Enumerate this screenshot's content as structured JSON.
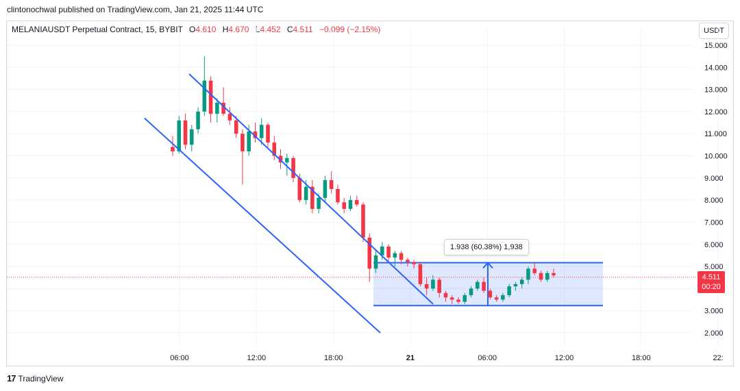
{
  "header": {
    "publish_line": "clintonochwal published on TradingView.com, Jan 21, 2025 11:44 UTC"
  },
  "legend": {
    "symbol": "MELANIAUSDT Perpetual Contract, 15, BYBIT",
    "open_k": "O",
    "open_v": "4.610",
    "high_k": "H",
    "high_v": "4.670",
    "low_k": "L",
    "low_v": "4.452",
    "close_k": "C",
    "close_v": "4.511",
    "change": "−0.099 (−2.15%)"
  },
  "currency_button": "USDT",
  "price_tag": {
    "price": "4.511",
    "countdown": "00:20"
  },
  "measure": {
    "label": "1.938 (60.38%) 1,938"
  },
  "footer": {
    "brand": "TradingView",
    "logo": "17"
  },
  "colors": {
    "up": "#089981",
    "down": "#f23645",
    "channel": "#2962ff",
    "grid": "#f0f3fa"
  },
  "chart_data": {
    "type": "candlestick",
    "x_tick_labels": [
      "06:00",
      "12:00",
      "18:00",
      "21",
      "06:00",
      "12:00",
      "18:00",
      "22:"
    ],
    "y_tick_labels": [
      "2.000",
      "3.000",
      "4.000",
      "5.000",
      "6.000",
      "7.000",
      "8.000",
      "9.000",
      "10.000",
      "11.000",
      "12.000",
      "13.000",
      "14.000",
      "15.000"
    ],
    "ylim": [
      1.5,
      15.7
    ],
    "last_price": 4.511,
    "candles": [
      [
        10.4,
        10.9,
        10.0,
        10.2
      ],
      [
        10.2,
        11.8,
        10.1,
        11.6
      ],
      [
        11.6,
        11.9,
        10.3,
        10.5
      ],
      [
        10.5,
        11.4,
        10.2,
        11.2
      ],
      [
        11.2,
        12.2,
        11.0,
        12.0
      ],
      [
        12.0,
        14.5,
        11.8,
        13.4
      ],
      [
        13.4,
        13.6,
        11.5,
        11.9
      ],
      [
        11.9,
        12.6,
        11.5,
        12.4
      ],
      [
        12.4,
        13.1,
        11.8,
        11.9
      ],
      [
        11.9,
        12.2,
        11.4,
        11.6
      ],
      [
        11.6,
        11.8,
        10.8,
        11.0
      ],
      [
        11.0,
        11.2,
        8.7,
        10.2
      ],
      [
        10.2,
        11.4,
        10.0,
        11.1
      ],
      [
        11.1,
        11.5,
        10.6,
        10.8
      ],
      [
        10.8,
        11.7,
        10.5,
        11.4
      ],
      [
        11.4,
        11.5,
        10.4,
        10.6
      ],
      [
        10.6,
        10.9,
        9.8,
        10.0
      ],
      [
        10.0,
        10.3,
        9.4,
        9.7
      ],
      [
        9.7,
        10.1,
        9.1,
        9.9
      ],
      [
        9.9,
        10.0,
        8.8,
        9.0
      ],
      [
        9.0,
        9.2,
        7.9,
        8.0
      ],
      [
        8.0,
        8.9,
        7.8,
        8.6
      ],
      [
        8.6,
        8.9,
        7.4,
        7.6
      ],
      [
        7.6,
        8.3,
        7.4,
        8.1
      ],
      [
        8.1,
        9.1,
        7.9,
        8.9
      ],
      [
        8.9,
        9.3,
        8.3,
        8.5
      ],
      [
        8.5,
        8.7,
        7.8,
        7.9
      ],
      [
        7.9,
        8.1,
        7.4,
        7.6
      ],
      [
        7.6,
        8.2,
        7.5,
        8.0
      ],
      [
        8.0,
        8.2,
        7.7,
        7.8
      ],
      [
        7.8,
        7.9,
        6.1,
        6.3
      ],
      [
        6.3,
        6.5,
        4.3,
        4.9
      ],
      [
        4.9,
        5.7,
        4.7,
        5.5
      ],
      [
        5.5,
        6.1,
        5.3,
        5.9
      ],
      [
        5.9,
        6.0,
        5.2,
        5.4
      ],
      [
        5.4,
        5.7,
        5.0,
        5.6
      ],
      [
        5.6,
        5.7,
        5.1,
        5.3
      ],
      [
        5.3,
        5.4,
        5.0,
        5.2
      ],
      [
        5.2,
        5.3,
        4.9,
        5.1
      ],
      [
        5.1,
        5.2,
        4.1,
        4.2
      ],
      [
        4.2,
        4.5,
        3.7,
        4.0
      ],
      [
        4.0,
        4.6,
        3.9,
        4.4
      ],
      [
        4.4,
        4.5,
        3.6,
        3.8
      ],
      [
        3.8,
        3.9,
        3.4,
        3.6
      ],
      [
        3.6,
        3.7,
        3.3,
        3.5
      ],
      [
        3.5,
        3.6,
        3.3,
        3.4
      ],
      [
        3.4,
        3.8,
        3.3,
        3.7
      ],
      [
        3.7,
        4.1,
        3.6,
        4.0
      ],
      [
        4.0,
        4.4,
        3.9,
        4.3
      ],
      [
        4.3,
        4.5,
        3.8,
        3.9
      ],
      [
        3.9,
        4.0,
        3.5,
        3.6
      ],
      [
        3.6,
        3.7,
        3.4,
        3.5
      ],
      [
        3.5,
        3.8,
        3.4,
        3.7
      ],
      [
        3.7,
        4.2,
        3.6,
        4.1
      ],
      [
        4.1,
        4.3,
        3.9,
        4.2
      ],
      [
        4.2,
        4.5,
        4.0,
        4.4
      ],
      [
        4.4,
        5.0,
        4.2,
        4.9
      ],
      [
        4.9,
        5.2,
        4.6,
        4.7
      ],
      [
        4.7,
        4.8,
        4.3,
        4.4
      ],
      [
        4.4,
        4.8,
        4.3,
        4.7
      ],
      [
        4.7,
        4.9,
        4.5,
        4.6
      ]
    ],
    "overlays": {
      "descending_channel_upper": [
        [
          13.7
        ],
        [
          3.3
        ]
      ],
      "descending_channel_lower": [
        [
          11.7
        ],
        [
          2.0
        ]
      ],
      "measure_range": {
        "low": 3.23,
        "high": 5.17,
        "change": 1.938,
        "percent": 60.38
      }
    }
  }
}
